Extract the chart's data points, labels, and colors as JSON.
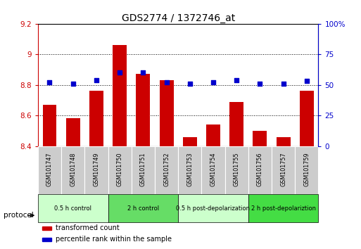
{
  "title": "GDS2774 / 1372746_at",
  "categories": [
    "GSM101747",
    "GSM101748",
    "GSM101749",
    "GSM101750",
    "GSM101751",
    "GSM101752",
    "GSM101753",
    "GSM101754",
    "GSM101755",
    "GSM101756",
    "GSM101757",
    "GSM101759"
  ],
  "bar_values": [
    8.67,
    8.58,
    8.76,
    9.06,
    8.87,
    8.83,
    8.46,
    8.54,
    8.69,
    8.5,
    8.46,
    8.76
  ],
  "percentile_values": [
    52,
    51,
    54,
    60,
    60,
    52,
    51,
    52,
    54,
    51,
    51,
    53
  ],
  "bar_color": "#cc0000",
  "percentile_color": "#0000cc",
  "ylim_left": [
    8.4,
    9.2
  ],
  "ylim_right": [
    0,
    100
  ],
  "yticks_left": [
    8.4,
    8.6,
    8.8,
    9.0,
    9.2
  ],
  "yticks_right": [
    0,
    25,
    50,
    75,
    100
  ],
  "ytick_labels_left": [
    "8.4",
    "8.6",
    "8.8",
    "9",
    "9.2"
  ],
  "ytick_labels_right": [
    "0",
    "25",
    "50",
    "75",
    "100%"
  ],
  "grid_values": [
    8.6,
    8.8,
    9.0
  ],
  "protocol_groups": [
    {
      "label": "0.5 h control",
      "start": 0,
      "end": 3,
      "color": "#ccffcc"
    },
    {
      "label": "2 h control",
      "start": 3,
      "end": 6,
      "color": "#66dd66"
    },
    {
      "label": "0.5 h post-depolarization",
      "start": 6,
      "end": 9,
      "color": "#ccffcc"
    },
    {
      "label": "2 h post-depolariztion",
      "start": 9,
      "end": 12,
      "color": "#44dd44"
    }
  ],
  "bar_width": 0.6,
  "bar_bottom": 8.4,
  "protocol_label": "protocol",
  "legend_items": [
    {
      "label": "transformed count",
      "color": "#cc0000"
    },
    {
      "label": "percentile rank within the sample",
      "color": "#0000cc"
    }
  ],
  "bg_color": "#f0f0f0",
  "cat_box_color": "#cccccc"
}
